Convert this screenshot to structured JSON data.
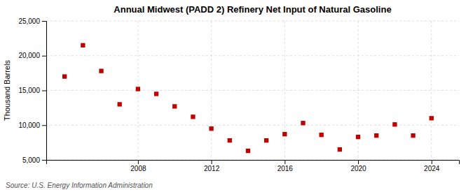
{
  "chart_data": {
    "type": "scatter",
    "title": "Annual Midwest (PADD 2) Refinery Net Input of Natural Gasoline",
    "y_label": "Thousand Barrels",
    "annotations": [
      "Source: U.S. Energy Information Administration"
    ],
    "x": [
      2004,
      2005,
      2006,
      2007,
      2008,
      2009,
      2010,
      2011,
      2012,
      2013,
      2014,
      2015,
      2016,
      2017,
      2018,
      2019,
      2020,
      2021,
      2022,
      2023,
      2024
    ],
    "values": [
      17000,
      21500,
      17800,
      13000,
      15200,
      14500,
      12700,
      11200,
      9500,
      7800,
      6300,
      7800,
      8700,
      10300,
      8600,
      6500,
      8300,
      8500,
      10100,
      8500,
      11000
    ],
    "color": "#c00000",
    "marker": "square",
    "xlim": [
      2003,
      2025.5
    ],
    "xticks": [
      2008,
      2012,
      2016,
      2020,
      2024
    ],
    "ylim": [
      5000,
      25000
    ],
    "yticks": [
      {
        "value": 5000,
        "label": "5,000"
      },
      {
        "value": 10000,
        "label": "10,000"
      },
      {
        "value": 15000,
        "label": "15,000"
      },
      {
        "value": 20000,
        "label": "20,000"
      },
      {
        "value": 25000,
        "label": "25,000"
      }
    ],
    "grid": true
  }
}
